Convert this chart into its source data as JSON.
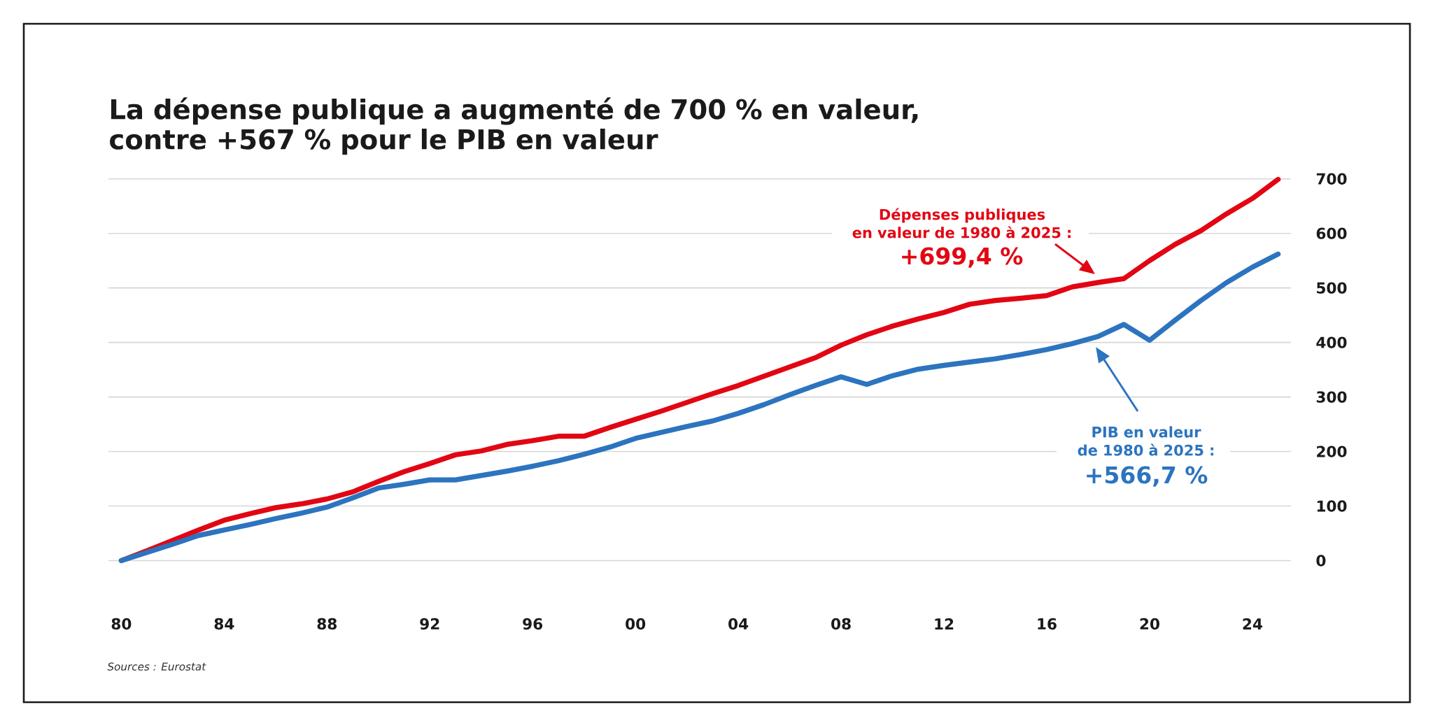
{
  "chart_data": {
    "type": "line",
    "title": "La dépense publique a augmenté de 700 % en valeur, contre +567 % pour le PIB en valeur",
    "x": [
      1980,
      1981,
      1982,
      1983,
      1984,
      1985,
      1986,
      1987,
      1988,
      1989,
      1990,
      1991,
      1992,
      1993,
      1994,
      1995,
      1996,
      1997,
      1998,
      1999,
      2000,
      2001,
      2002,
      2003,
      2004,
      2005,
      2006,
      2007,
      2008,
      2009,
      2010,
      2011,
      2012,
      2013,
      2014,
      2015,
      2016,
      2017,
      2018,
      2019,
      2020,
      2021,
      2022,
      2023,
      2024,
      2025
    ],
    "series": [
      {
        "color": "#e20613",
        "values": [
          0,
          18,
          37,
          56,
          74,
          86,
          97,
          104,
          113,
          126,
          145,
          163,
          178,
          194,
          201,
          213,
          220,
          228,
          228,
          244,
          259,
          274,
          290,
          306,
          321,
          338,
          355,
          372,
          395,
          414,
          430,
          443,
          455,
          470,
          477,
          481,
          486,
          502,
          510,
          517,
          550,
          580,
          605,
          636,
          664,
          699
        ]
      },
      {
        "color": "#2c74bf",
        "values": [
          0,
          15,
          30,
          46,
          56,
          66,
          77,
          87,
          98,
          115,
          133,
          140,
          148,
          148,
          156,
          164,
          173,
          183,
          195,
          208,
          224,
          235,
          246,
          256,
          270,
          286,
          304,
          321,
          337,
          323,
          339,
          351,
          358,
          364,
          370,
          378,
          387,
          398,
          411,
          433,
          404,
          441,
          477,
          510,
          538,
          562
        ]
      }
    ],
    "xlim": [
      1979.5,
      2025.5
    ],
    "xticks": [
      {
        "value": 1980,
        "label": "80"
      },
      {
        "value": 1984,
        "label": "84"
      },
      {
        "value": 1988,
        "label": "88"
      },
      {
        "value": 1992,
        "label": "92"
      },
      {
        "value": 1996,
        "label": "96"
      },
      {
        "value": 2000,
        "label": "00"
      },
      {
        "value": 2004,
        "label": "04"
      },
      {
        "value": 2008,
        "label": "08"
      },
      {
        "value": 2012,
        "label": "12"
      },
      {
        "value": 2016,
        "label": "16"
      },
      {
        "value": 2020,
        "label": "20"
      },
      {
        "value": 2024,
        "label": "24"
      }
    ],
    "ylim": [
      0,
      700
    ],
    "yticks": [
      0,
      100,
      200,
      300,
      400,
      500,
      600,
      700
    ],
    "grid": "y",
    "annotations": [
      "Dépenses publiques en valeur de 1980 à 2025 :",
      "+699,4 %",
      "PIB en valeur de 1980 à 2025 :",
      "+566,7 %",
      "Sources : Eurostat"
    ]
  }
}
